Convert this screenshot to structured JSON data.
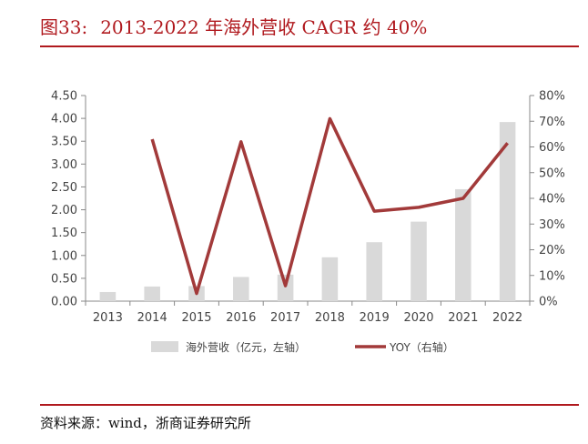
{
  "header": {
    "figure_num": "图33:",
    "title": "2013-2022 年海外营收 CAGR 约 40%"
  },
  "source": "资料来源：wind，浙商证券研究所",
  "chart_data": {
    "type": "bar+line",
    "categories": [
      "2013",
      "2014",
      "2015",
      "2016",
      "2017",
      "2018",
      "2019",
      "2020",
      "2021",
      "2022"
    ],
    "series": [
      {
        "name": "海外营收（亿元，左轴）",
        "type": "bar",
        "axis": "left",
        "values": [
          0.2,
          0.32,
          0.33,
          0.53,
          0.58,
          0.96,
          1.29,
          1.74,
          2.45,
          3.92
        ],
        "color": "#d9d9d9"
      },
      {
        "name": "YOY（右轴）",
        "type": "line",
        "axis": "right",
        "values": [
          null,
          63,
          3,
          62,
          6,
          71,
          35,
          36.5,
          40,
          61.5
        ],
        "color": "#a23a3a"
      }
    ],
    "ylim_left": [
      0,
      4.5
    ],
    "yticks_left": [
      "0.00",
      "0.50",
      "1.00",
      "1.50",
      "2.00",
      "2.50",
      "3.00",
      "3.50",
      "4.00",
      "4.50"
    ],
    "ylim_right": [
      0,
      80
    ],
    "yticks_right": [
      "0%",
      "10%",
      "20%",
      "30%",
      "40%",
      "50%",
      "60%",
      "70%",
      "80%"
    ],
    "legend_position": "bottom",
    "grid": false
  }
}
